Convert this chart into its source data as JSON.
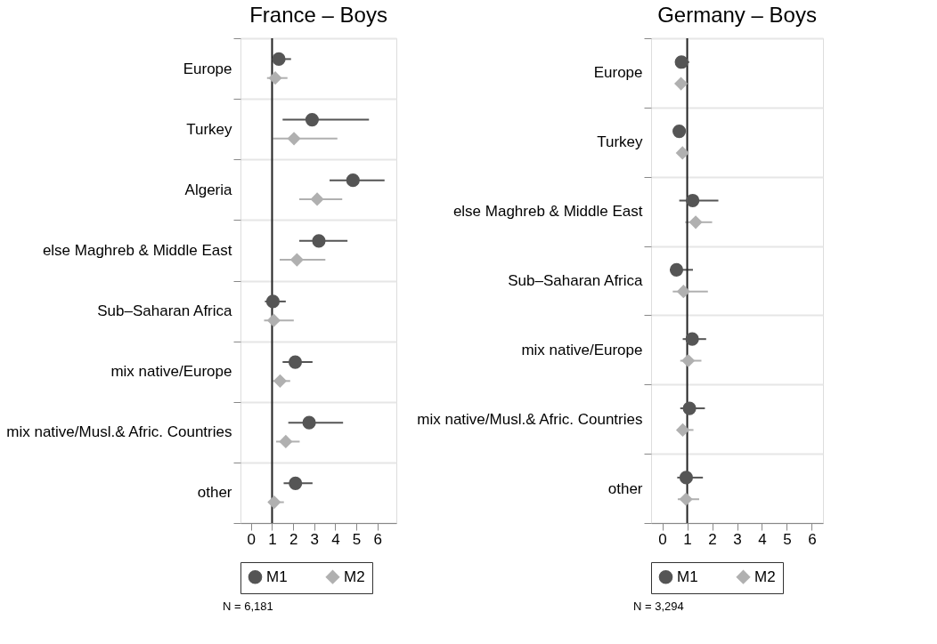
{
  "chart_data": [
    {
      "type": "scatter",
      "title": "France – Boys",
      "orientation": "horizontal",
      "categories": [
        "Europe",
        "Turkey",
        "Algeria",
        "else Maghreb & Middle East",
        "Sub–Saharan Africa",
        "mix native/Europe",
        "mix native/Musl.& Afric. Countries",
        "other"
      ],
      "series": [
        {
          "name": "M1",
          "color": "#555555",
          "marker": "circle",
          "values": [
            1.32,
            2.9,
            4.84,
            3.22,
            1.04,
            2.1,
            2.76,
            2.11
          ],
          "errors": [
            [
              1.0,
              1.9
            ],
            [
              1.5,
              5.6
            ],
            [
              3.73,
              6.34
            ],
            [
              2.29,
              4.58
            ],
            [
              0.66,
              1.65
            ],
            [
              1.5,
              2.92
            ],
            [
              1.77,
              4.37
            ],
            [
              1.55,
              2.92
            ]
          ]
        },
        {
          "name": "M2",
          "color": "#b0b0b0",
          "marker": "diamond",
          "values": [
            1.15,
            2.04,
            3.14,
            2.18,
            1.08,
            1.38,
            1.65,
            1.1
          ],
          "errors": [
            [
              0.76,
              1.73
            ],
            [
              1.04,
              4.1
            ],
            [
              2.29,
              4.33
            ],
            [
              1.36,
              3.53
            ],
            [
              0.62,
              2.03
            ],
            [
              1.04,
              1.86
            ],
            [
              1.19,
              2.31
            ],
            [
              0.83,
              1.56
            ]
          ]
        }
      ],
      "xlim": [
        -0.5,
        6.9
      ],
      "xticks": [
        0,
        1,
        2,
        3,
        4,
        5,
        6
      ],
      "grid": "y",
      "legend": "bottom",
      "ref_lines": [
        {
          "axis": "x",
          "value": 1,
          "color": "#222222"
        }
      ],
      "annotations": [
        "N = 6,181"
      ]
    },
    {
      "type": "scatter",
      "title": "Germany – Boys",
      "orientation": "horizontal",
      "categories": [
        "Europe",
        "Turkey",
        "else Maghreb & Middle East",
        "Sub–Saharan Africa",
        "mix native/Europe",
        "mix native/Musl.& Afric. Countries",
        "other"
      ],
      "series": [
        {
          "name": "M1",
          "color": "#555555",
          "marker": "circle",
          "values": [
            0.77,
            0.68,
            1.22,
            0.57,
            1.2,
            1.09,
            0.96
          ],
          "errors": [
            [
              0.65,
              1.08
            ],
            [
              0.55,
              0.82
            ],
            [
              0.68,
              2.25
            ],
            [
              0.3,
              1.23
            ],
            [
              0.82,
              1.76
            ],
            [
              0.72,
              1.71
            ],
            [
              0.6,
              1.63
            ]
          ]
        },
        {
          "name": "M2",
          "color": "#b0b0b0",
          "marker": "diamond",
          "values": [
            0.75,
            0.81,
            1.34,
            0.85,
            1.04,
            0.82,
            0.95
          ],
          "errors": [
            [
              0.62,
              0.9
            ],
            [
              0.68,
              0.95
            ],
            [
              0.92,
              2.0
            ],
            [
              0.42,
              1.83
            ],
            [
              0.72,
              1.57
            ],
            [
              0.6,
              1.25
            ],
            [
              0.62,
              1.48
            ]
          ]
        }
      ],
      "xlim": [
        -0.45,
        6.45
      ],
      "xticks": [
        0,
        1,
        2,
        3,
        4,
        5,
        6
      ],
      "grid": "y",
      "legend": "bottom",
      "ref_lines": [
        {
          "axis": "x",
          "value": 1,
          "color": "#222222"
        }
      ],
      "annotations": [
        "N = 3,294"
      ]
    }
  ]
}
